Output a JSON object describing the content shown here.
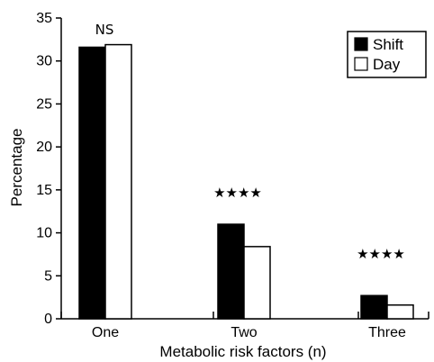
{
  "chart_data": {
    "type": "bar",
    "xlabel": "Metabolic risk factors (n)",
    "ylabel": "Percentage",
    "ylim": [
      0,
      35
    ],
    "yticks": [
      0,
      5,
      10,
      15,
      20,
      25,
      30,
      35
    ],
    "categories": [
      "One",
      "Two",
      "Three"
    ],
    "series": [
      {
        "name": "Shift",
        "values": [
          31.6,
          11.0,
          2.7
        ],
        "color": "#000000"
      },
      {
        "name": "Day",
        "values": [
          31.9,
          8.4,
          1.6
        ],
        "color": "#ffffff"
      }
    ],
    "annotations": [
      "NS",
      "★★★★",
      "★★★★"
    ],
    "legend": {
      "position": "top-right",
      "labels": [
        "Shift",
        "Day"
      ]
    },
    "grid": false
  }
}
